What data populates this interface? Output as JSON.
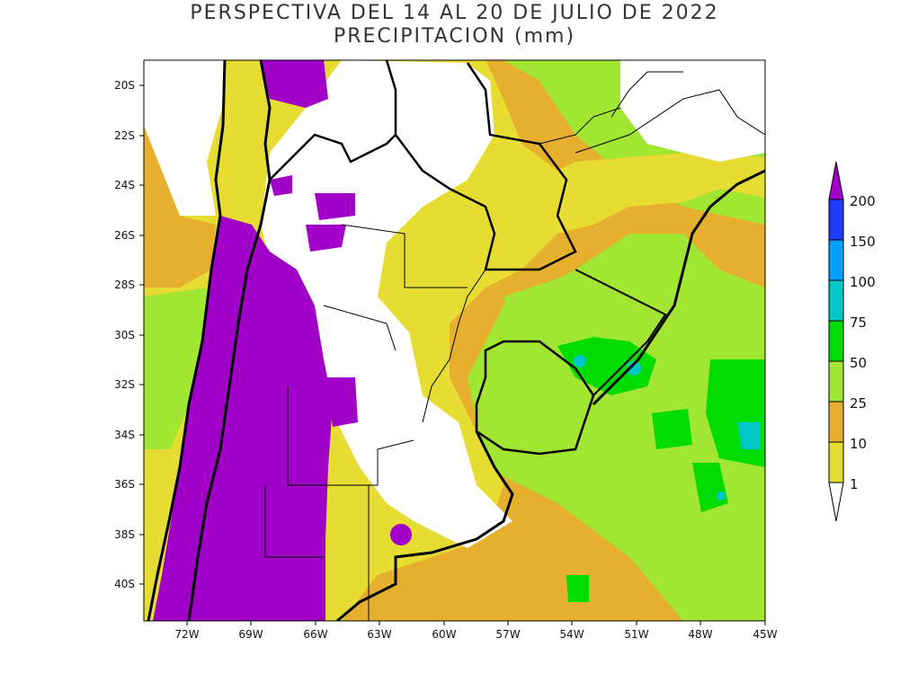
{
  "title_line1": "PERSPECTIVA DEL 14 AL 20 DE JULIO DE 2022",
  "title_line2": "PRECIPITACION (mm)",
  "map": {
    "lat_ticks": [
      "20S",
      "22S",
      "24S",
      "26S",
      "28S",
      "30S",
      "32S",
      "34S",
      "36S",
      "38S",
      "40S"
    ],
    "lon_ticks": [
      "72W",
      "69W",
      "66W",
      "63W",
      "60W",
      "57W",
      "54W",
      "51W",
      "48W",
      "45W"
    ]
  },
  "legend": {
    "labels": [
      "1",
      "10",
      "25",
      "50",
      "75",
      "100",
      "150",
      "200"
    ],
    "colors": {
      "lt1": "#ffffff",
      "c1_10": "#e6dc32",
      "c10_25": "#e6af2d",
      "c25_50": "#a0e632",
      "c50_75": "#00dc00",
      "c75_100": "#00c8c8",
      "c100_150": "#00a0ff",
      "c150_200": "#1e3cff",
      "gt200": "#a000c8"
    }
  }
}
